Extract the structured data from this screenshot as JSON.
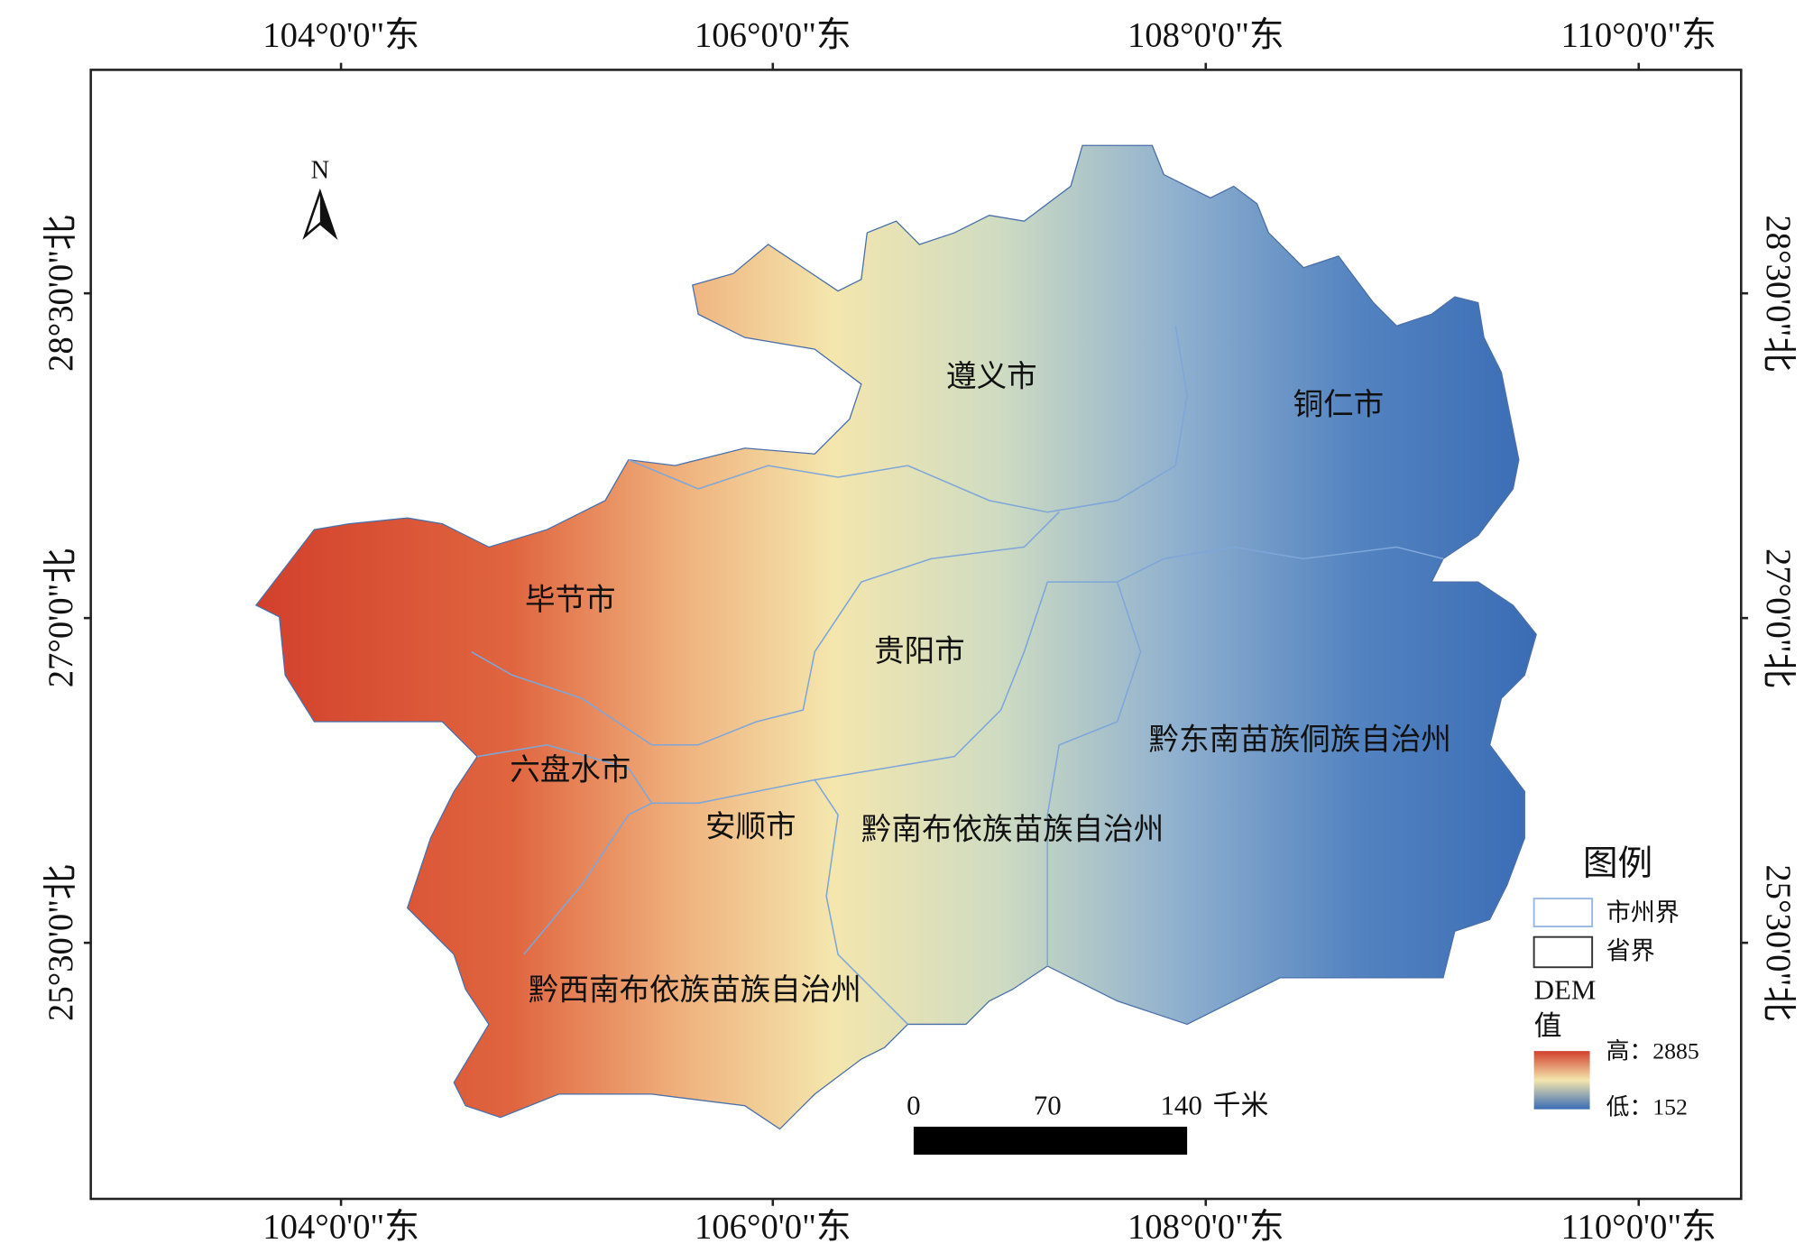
{
  "map": {
    "longitude_labels": [
      "104°0'0\"东",
      "106°0'0\"东",
      "108°0'0\"东",
      "110°0'0\"东"
    ],
    "latitude_labels": [
      "28°30'0\"北",
      "27°0'0\"北",
      "25°30'0\"北"
    ],
    "north": "N",
    "regions": [
      "遵义市",
      "铜仁市",
      "毕节市",
      "贵阳市",
      "黔东南苗族侗族自治州",
      "六盘水市",
      "安顺市",
      "黔南布依族苗族自治州",
      "黔西南布依族苗族自治州"
    ],
    "legend": {
      "title": "图例",
      "items": [
        "市州界",
        "省界"
      ],
      "dem_title": "DEM",
      "dem_unit": "值",
      "high": "高：2885",
      "low": "低：152"
    },
    "scale_bar": {
      "labels": [
        "0",
        "70",
        "140"
      ],
      "unit": "千米"
    }
  }
}
